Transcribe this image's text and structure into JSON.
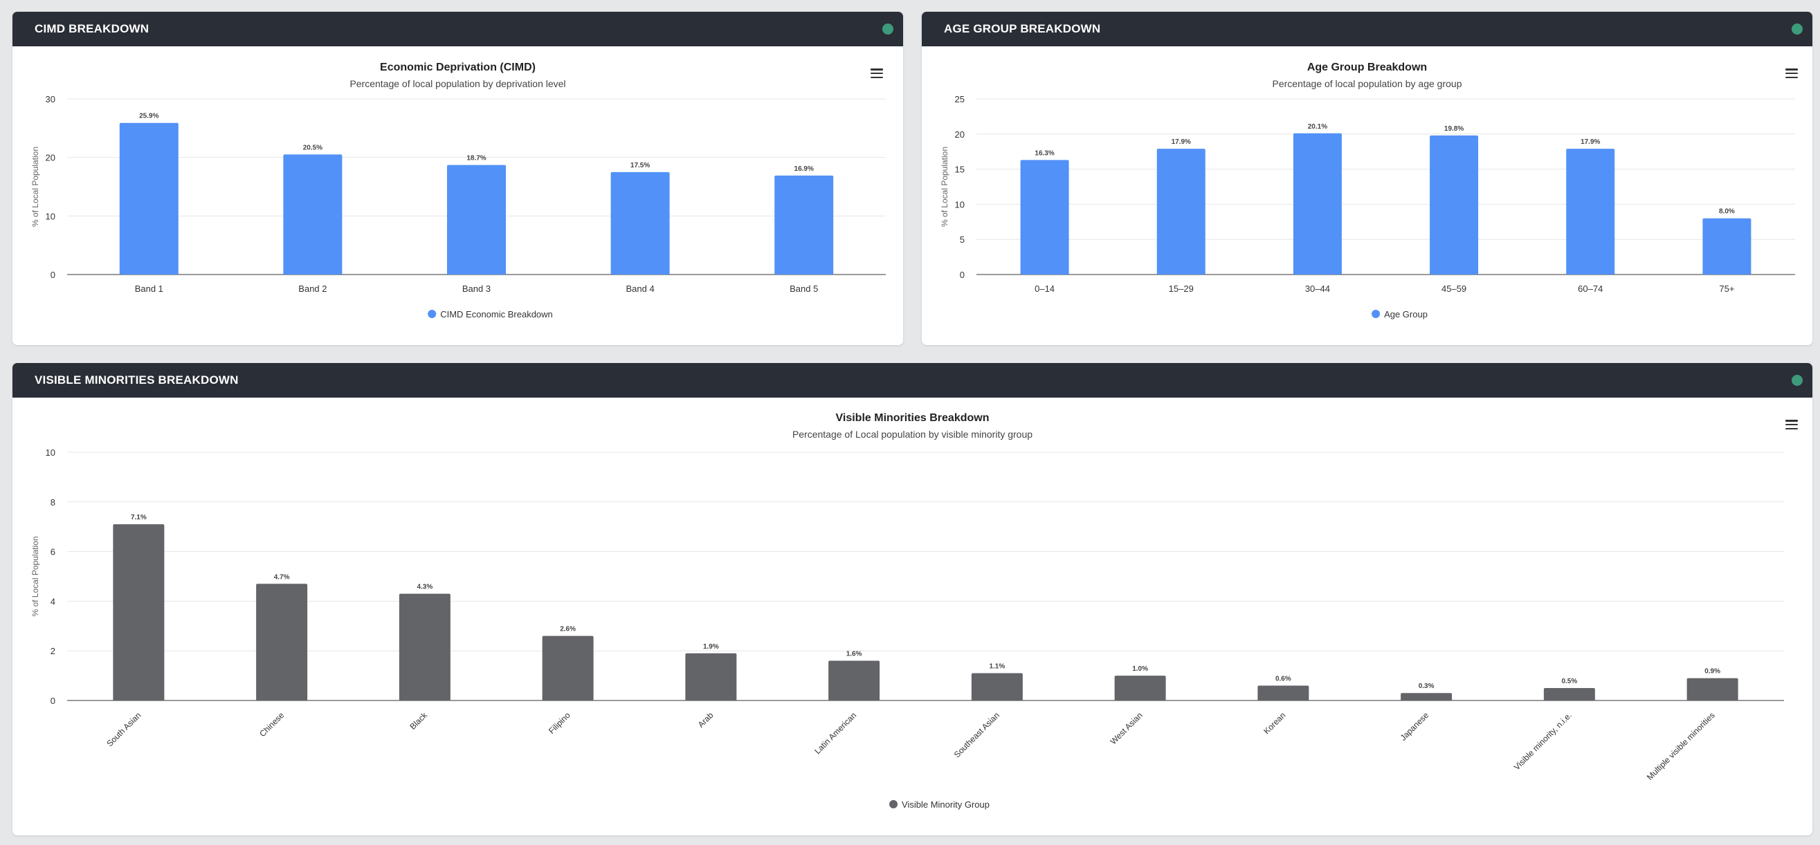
{
  "panels": {
    "cimd": {
      "title": "CIMD BREAKDOWN",
      "status_color": "#3d9b7c"
    },
    "age": {
      "title": "AGE GROUP BREAKDOWN",
      "status_color": "#3d9b7c"
    },
    "vm": {
      "title": "VISIBLE MINORITIES BREAKDOWN",
      "status_color": "#3d9b7c"
    }
  },
  "icons": {
    "menu": "hamburger-menu-icon"
  },
  "chart_data": [
    {
      "id": "cimd",
      "type": "bar",
      "title": "Economic Deprivation (CIMD)",
      "subtitle": "Percentage of local population by deprivation level",
      "ylabel": "% of Local Population",
      "xlabel": "",
      "ylim": [
        0,
        30
      ],
      "yticks": [
        0,
        10,
        20,
        30
      ],
      "categories": [
        "Band 1",
        "Band 2",
        "Band 3",
        "Band 4",
        "Band 5"
      ],
      "series": [
        {
          "name": "CIMD Economic Breakdown",
          "values": [
            25.9,
            20.5,
            18.7,
            17.5,
            16.9
          ],
          "labels": [
            "25.9%",
            "20.5%",
            "18.7%",
            "17.5%",
            "16.9%"
          ],
          "color": "#5291f7"
        }
      ],
      "grid": true,
      "legend": "bottom-center"
    },
    {
      "id": "age",
      "type": "bar",
      "title": "Age Group Breakdown",
      "subtitle": "Percentage of local population by age group",
      "ylabel": "% of Local Population",
      "xlabel": "",
      "ylim": [
        0,
        25
      ],
      "yticks": [
        0,
        5,
        10,
        15,
        20,
        25
      ],
      "categories": [
        "0–14",
        "15–29",
        "30–44",
        "45–59",
        "60–74",
        "75+"
      ],
      "series": [
        {
          "name": "Age Group",
          "values": [
            16.3,
            17.9,
            20.1,
            19.8,
            17.9,
            8.0
          ],
          "labels": [
            "16.3%",
            "17.9%",
            "20.1%",
            "19.8%",
            "17.9%",
            "8.0%"
          ],
          "color": "#5291f7"
        }
      ],
      "grid": true,
      "legend": "bottom-center"
    },
    {
      "id": "vm",
      "type": "bar",
      "title": "Visible Minorities Breakdown",
      "subtitle": "Percentage of Local population by visible minority group",
      "ylabel": "% of Local Population",
      "xlabel": "",
      "ylim": [
        0,
        10
      ],
      "yticks": [
        0,
        2,
        4,
        6,
        8,
        10
      ],
      "categories": [
        "South Asian",
        "Chinese",
        "Black",
        "Filipino",
        "Arab",
        "Latin American",
        "Southeast Asian",
        "West Asian",
        "Korean",
        "Japanese",
        "Visible minority, n.i.e.",
        "Multiple visible minorities"
      ],
      "series": [
        {
          "name": "Visible Minority Group",
          "values": [
            7.1,
            4.7,
            4.3,
            2.6,
            1.9,
            1.6,
            1.1,
            1.0,
            0.6,
            0.3,
            0.5,
            0.9
          ],
          "labels": [
            "7.1%",
            "4.7%",
            "4.3%",
            "2.6%",
            "1.9%",
            "1.6%",
            "1.1%",
            "1.0%",
            "0.6%",
            "0.3%",
            "0.5%",
            "0.9%"
          ],
          "color": "#636468"
        }
      ],
      "grid": true,
      "legend": "bottom-center"
    }
  ]
}
